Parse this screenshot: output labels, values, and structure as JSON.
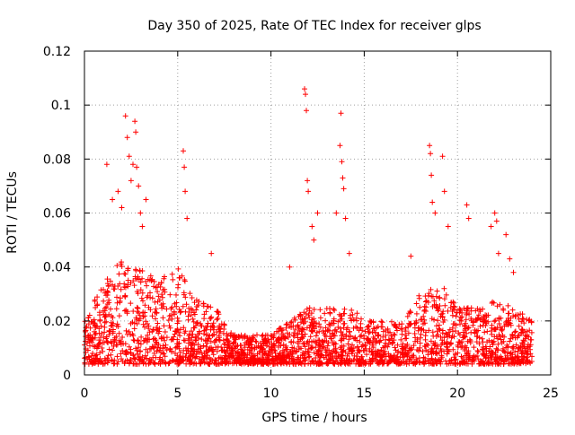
{
  "chart_data": {
    "type": "scatter",
    "title": "Day 350 of 2025, Rate Of TEC Index for receiver glps",
    "xlabel": "GPS time / hours",
    "ylabel": "ROTI / TECUs",
    "xlim": [
      0,
      25
    ],
    "ylim": [
      0,
      0.12
    ],
    "xticks": [
      0,
      5,
      10,
      15,
      20,
      25
    ],
    "yticks": [
      0,
      0.02,
      0.04,
      0.06,
      0.08,
      0.1,
      0.12
    ],
    "xtick_labels": [
      "0",
      "5",
      "10",
      "15",
      "20",
      "25"
    ],
    "ytick_labels": [
      "0",
      "0.02",
      "0.04",
      "0.06",
      "0.08",
      "0.1",
      "0.12"
    ],
    "grid": true,
    "marker": "+",
    "color": "#ff0000",
    "data_x_range": [
      0,
      24
    ],
    "envelope": {
      "hours": [
        0,
        1,
        2,
        3,
        4,
        5,
        6,
        7,
        8,
        9,
        10,
        11,
        12,
        13,
        14,
        15,
        16,
        17,
        18,
        19,
        20,
        21,
        22,
        23,
        24
      ],
      "typical_max": [
        0.02,
        0.035,
        0.045,
        0.04,
        0.035,
        0.04,
        0.028,
        0.025,
        0.015,
        0.015,
        0.015,
        0.02,
        0.025,
        0.025,
        0.025,
        0.022,
        0.02,
        0.02,
        0.03,
        0.035,
        0.025,
        0.025,
        0.028,
        0.025,
        0.02
      ]
    },
    "outliers": [
      {
        "x": 1.2,
        "y": 0.078
      },
      {
        "x": 1.5,
        "y": 0.065
      },
      {
        "x": 1.8,
        "y": 0.068
      },
      {
        "x": 2.0,
        "y": 0.062
      },
      {
        "x": 2.2,
        "y": 0.096
      },
      {
        "x": 2.3,
        "y": 0.088
      },
      {
        "x": 2.4,
        "y": 0.081
      },
      {
        "x": 2.5,
        "y": 0.072
      },
      {
        "x": 2.6,
        "y": 0.078
      },
      {
        "x": 2.7,
        "y": 0.094
      },
      {
        "x": 2.75,
        "y": 0.09
      },
      {
        "x": 2.8,
        "y": 0.077
      },
      {
        "x": 2.9,
        "y": 0.07
      },
      {
        "x": 3.0,
        "y": 0.06
      },
      {
        "x": 3.1,
        "y": 0.055
      },
      {
        "x": 3.3,
        "y": 0.065
      },
      {
        "x": 5.3,
        "y": 0.083
      },
      {
        "x": 5.35,
        "y": 0.077
      },
      {
        "x": 5.4,
        "y": 0.068
      },
      {
        "x": 5.5,
        "y": 0.058
      },
      {
        "x": 6.8,
        "y": 0.045
      },
      {
        "x": 11.0,
        "y": 0.04
      },
      {
        "x": 11.8,
        "y": 0.106
      },
      {
        "x": 11.85,
        "y": 0.104
      },
      {
        "x": 11.9,
        "y": 0.098
      },
      {
        "x": 11.95,
        "y": 0.072
      },
      {
        "x": 12.0,
        "y": 0.068
      },
      {
        "x": 12.2,
        "y": 0.055
      },
      {
        "x": 12.3,
        "y": 0.05
      },
      {
        "x": 12.5,
        "y": 0.06
      },
      {
        "x": 13.5,
        "y": 0.06
      },
      {
        "x": 13.7,
        "y": 0.085
      },
      {
        "x": 13.75,
        "y": 0.097
      },
      {
        "x": 13.8,
        "y": 0.079
      },
      {
        "x": 13.85,
        "y": 0.073
      },
      {
        "x": 13.9,
        "y": 0.069
      },
      {
        "x": 14.0,
        "y": 0.058
      },
      {
        "x": 14.2,
        "y": 0.045
      },
      {
        "x": 17.5,
        "y": 0.044
      },
      {
        "x": 18.5,
        "y": 0.085
      },
      {
        "x": 18.55,
        "y": 0.082
      },
      {
        "x": 18.6,
        "y": 0.074
      },
      {
        "x": 18.65,
        "y": 0.064
      },
      {
        "x": 18.8,
        "y": 0.06
      },
      {
        "x": 19.2,
        "y": 0.081
      },
      {
        "x": 19.3,
        "y": 0.068
      },
      {
        "x": 19.5,
        "y": 0.055
      },
      {
        "x": 20.5,
        "y": 0.063
      },
      {
        "x": 20.6,
        "y": 0.058
      },
      {
        "x": 21.8,
        "y": 0.055
      },
      {
        "x": 22.0,
        "y": 0.06
      },
      {
        "x": 22.1,
        "y": 0.057
      },
      {
        "x": 22.2,
        "y": 0.045
      },
      {
        "x": 22.6,
        "y": 0.052
      },
      {
        "x": 22.8,
        "y": 0.043
      },
      {
        "x": 23.0,
        "y": 0.038
      }
    ]
  }
}
